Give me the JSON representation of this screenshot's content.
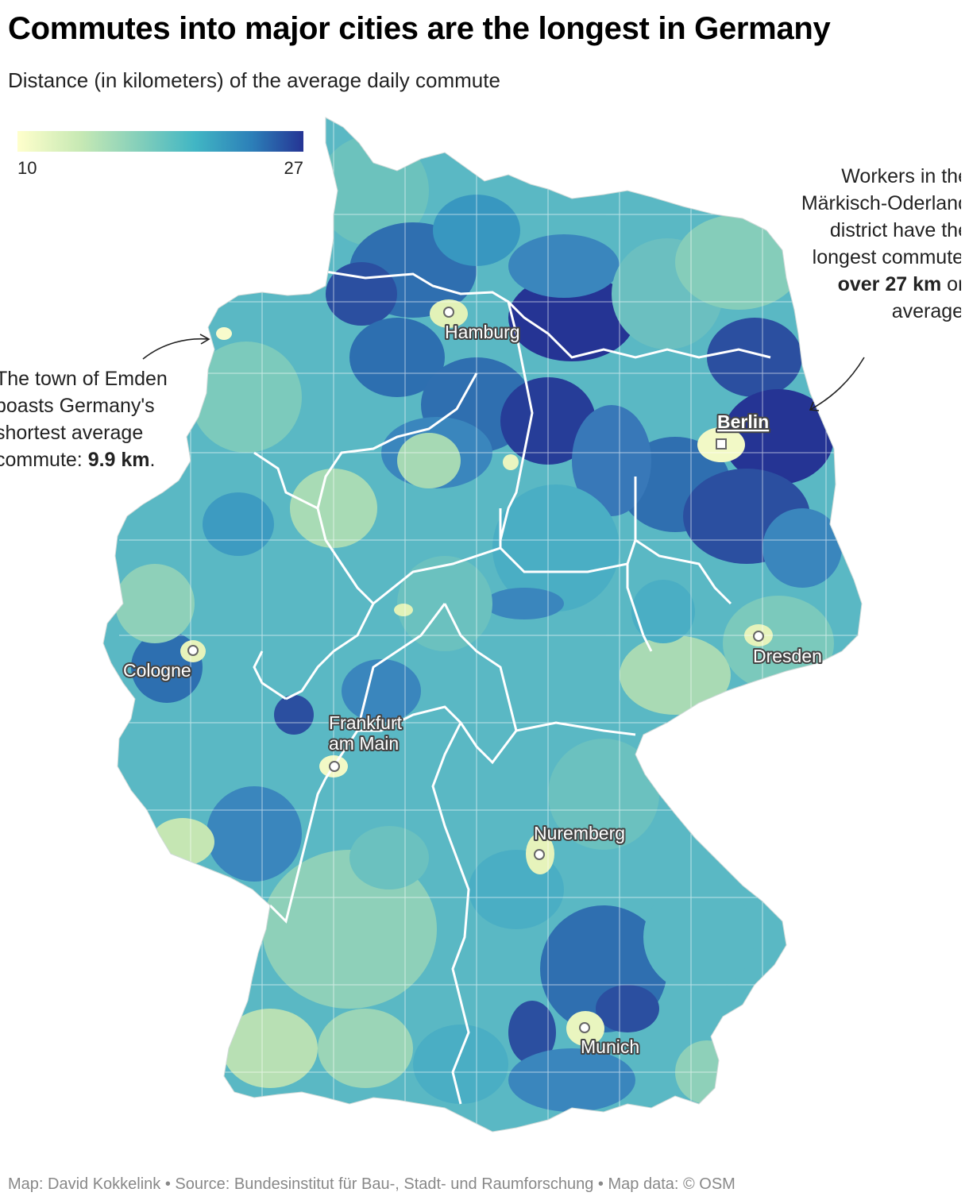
{
  "title": "Commutes into major cities are the longest in Germany",
  "subtitle": "Distance (in kilometers) of the average daily commute",
  "legend": {
    "min_label": "10",
    "max_label": "27",
    "min_value": 10,
    "max_value": 27,
    "colors": [
      "#ffffcc",
      "#c7e9b4",
      "#7fcdbb",
      "#41b6c4",
      "#2c7fb8",
      "#253494"
    ]
  },
  "cities": [
    {
      "name": "Hamburg",
      "marker": "circle"
    },
    {
      "name": "Berlin",
      "marker": "square"
    },
    {
      "name": "Cologne",
      "marker": "circle"
    },
    {
      "name": "Dresden",
      "marker": "circle"
    },
    {
      "name": "Frankfurt",
      "name2": "am Main",
      "marker": "circle"
    },
    {
      "name": "Nuremberg",
      "marker": "circle"
    },
    {
      "name": "Munich",
      "marker": "circle"
    }
  ],
  "annotations": {
    "emden": {
      "text": "The town of Emden boasts Germany's shortest average commute: ",
      "highlight": "9.9 km",
      "suffix": "."
    },
    "maerkisch": {
      "text": "Workers in the Märkisch-Oderland district have the longest commute, ",
      "highlight1": "over",
      "highlight2": "27 km",
      "suffix": " on average."
    }
  },
  "footer": "Map: David Kokkelink • Source: Bundesinstitut für Bau-, Stadt- und Raumforschung • Map data: © OSM"
}
